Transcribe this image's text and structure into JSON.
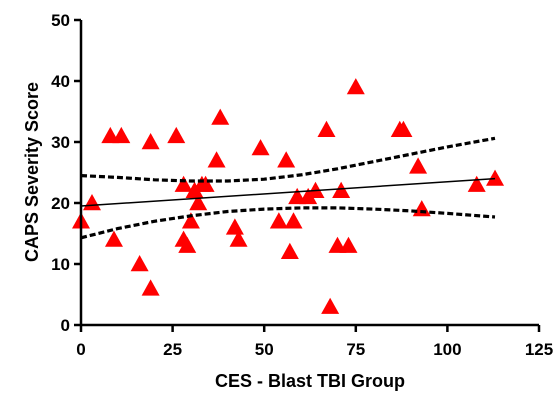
{
  "chart_data": {
    "type": "scatter",
    "title": "",
    "xlabel": "CES - Blast TBI Group",
    "ylabel": "CAPS Severity Score",
    "xlim": [
      0,
      125
    ],
    "ylim": [
      0,
      50
    ],
    "x_ticks": [
      0,
      25,
      50,
      75,
      100,
      125
    ],
    "y_ticks": [
      0,
      10,
      20,
      30,
      40,
      50
    ],
    "marker": "triangle",
    "colors": {
      "points": "#ff0000",
      "lines": "#000000"
    },
    "points": [
      {
        "x": 0,
        "y": 17
      },
      {
        "x": 3,
        "y": 20
      },
      {
        "x": 8,
        "y": 31
      },
      {
        "x": 9,
        "y": 14
      },
      {
        "x": 11,
        "y": 31
      },
      {
        "x": 16,
        "y": 10
      },
      {
        "x": 19,
        "y": 6
      },
      {
        "x": 19,
        "y": 30
      },
      {
        "x": 26,
        "y": 31
      },
      {
        "x": 28,
        "y": 14
      },
      {
        "x": 28,
        "y": 23
      },
      {
        "x": 29,
        "y": 13
      },
      {
        "x": 30,
        "y": 17
      },
      {
        "x": 31,
        "y": 22
      },
      {
        "x": 32,
        "y": 20
      },
      {
        "x": 33,
        "y": 23
      },
      {
        "x": 34,
        "y": 23
      },
      {
        "x": 37,
        "y": 27
      },
      {
        "x": 38,
        "y": 34
      },
      {
        "x": 42,
        "y": 16
      },
      {
        "x": 43,
        "y": 14
      },
      {
        "x": 49,
        "y": 29
      },
      {
        "x": 54,
        "y": 17
      },
      {
        "x": 56,
        "y": 27
      },
      {
        "x": 57,
        "y": 12
      },
      {
        "x": 58,
        "y": 17
      },
      {
        "x": 59,
        "y": 21
      },
      {
        "x": 62,
        "y": 21
      },
      {
        "x": 64,
        "y": 22
      },
      {
        "x": 67,
        "y": 32
      },
      {
        "x": 68,
        "y": 3
      },
      {
        "x": 70,
        "y": 13
      },
      {
        "x": 71,
        "y": 22
      },
      {
        "x": 73,
        "y": 13
      },
      {
        "x": 75,
        "y": 39
      },
      {
        "x": 87,
        "y": 32
      },
      {
        "x": 88,
        "y": 32
      },
      {
        "x": 92,
        "y": 26
      },
      {
        "x": 93,
        "y": 19
      },
      {
        "x": 108,
        "y": 23
      },
      {
        "x": 113,
        "y": 24
      }
    ],
    "regression_line": {
      "x": [
        0,
        113
      ],
      "y": [
        19.5,
        24
      ]
    },
    "confidence_band": {
      "upper": [
        [
          0,
          24.5
        ],
        [
          10,
          24.2
        ],
        [
          20,
          23.8
        ],
        [
          30,
          23.6
        ],
        [
          40,
          23.6
        ],
        [
          50,
          23.9
        ],
        [
          60,
          24.6
        ],
        [
          70,
          25.6
        ],
        [
          80,
          26.8
        ],
        [
          90,
          28.0
        ],
        [
          100,
          29.2
        ],
        [
          113,
          30.6
        ]
      ],
      "lower": [
        [
          0,
          14.3
        ],
        [
          10,
          15.8
        ],
        [
          20,
          17.0
        ],
        [
          30,
          17.9
        ],
        [
          40,
          18.6
        ],
        [
          50,
          19.0
        ],
        [
          60,
          19.2
        ],
        [
          70,
          19.2
        ],
        [
          80,
          19.0
        ],
        [
          90,
          18.7
        ],
        [
          100,
          18.3
        ],
        [
          113,
          17.7
        ]
      ]
    },
    "grid": false,
    "legend": "none"
  }
}
